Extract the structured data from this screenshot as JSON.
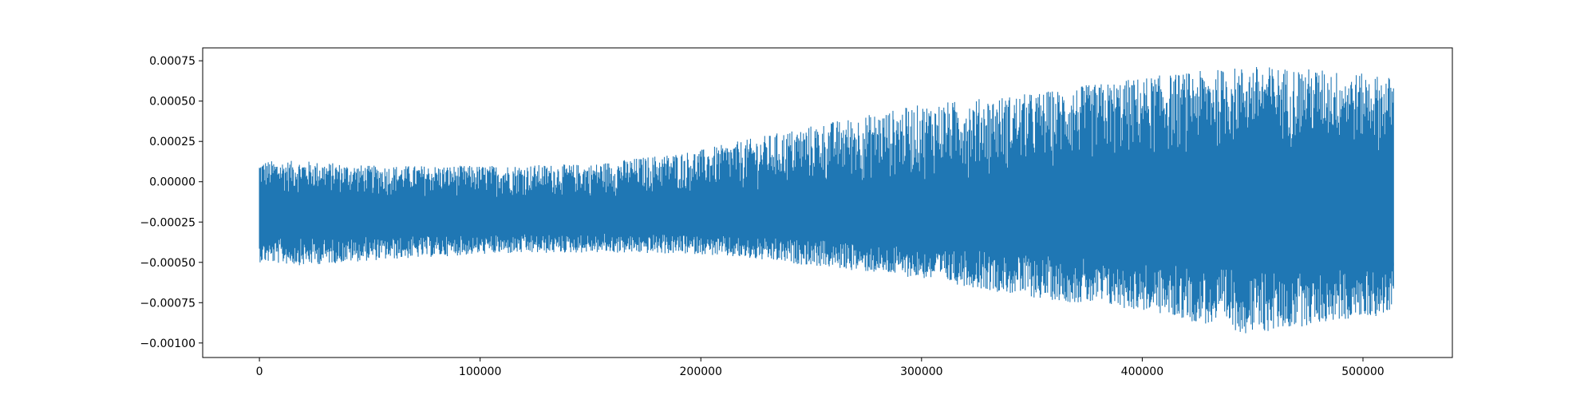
{
  "chart_data": {
    "type": "line",
    "title": "",
    "xlabel": "",
    "ylabel": "",
    "xlim": [
      -25700,
      540500
    ],
    "ylim": [
      -0.00109,
      0.00083
    ],
    "x_ticks": [
      0,
      100000,
      200000,
      300000,
      400000,
      500000
    ],
    "x_tick_labels": [
      "0",
      "100000",
      "200000",
      "300000",
      "400000",
      "500000"
    ],
    "y_ticks": [
      0.00075,
      0.0005,
      0.00025,
      0.0,
      -0.00025,
      -0.0005,
      -0.00075,
      -0.001
    ],
    "y_tick_labels": [
      "0.00075",
      "0.00050",
      "0.00025",
      "0.00000",
      "−0.00025",
      "−0.00050",
      "−0.00075",
      "−0.00100"
    ],
    "grid": false,
    "legend": "none",
    "series_color": "#1f77b4",
    "x_max": 514000,
    "envelope": {
      "x": [
        0,
        20000,
        50000,
        100000,
        150000,
        200000,
        250000,
        300000,
        350000,
        400000,
        450000,
        480000,
        514000
      ],
      "upper": [
        0.00013,
        0.00013,
        0.0001,
        0.0001,
        0.00011,
        0.0002,
        0.00035,
        0.00048,
        0.00055,
        0.00065,
        0.00072,
        0.0007,
        0.00065
      ],
      "lower": [
        -0.0005,
        -0.00052,
        -0.00049,
        -0.00045,
        -0.00044,
        -0.00045,
        -0.00052,
        -0.0006,
        -0.00072,
        -0.0008,
        -0.00095,
        -0.00088,
        -0.00082
      ],
      "inner_upper": [
        -8e-05,
        -8e-05,
        -0.0001,
        -0.0001,
        -0.0001,
        -8e-05,
        -5e-05,
        0.0,
        5e-05,
        0.00012,
        0.0002,
        0.0002,
        0.00017
      ],
      "inner_lower": [
        -0.00035,
        -0.00035,
        -0.00034,
        -0.00033,
        -0.00032,
        -0.00033,
        -0.00036,
        -0.0004,
        -0.00045,
        -0.0005,
        -0.00055,
        -0.00055,
        -0.00052
      ]
    }
  }
}
